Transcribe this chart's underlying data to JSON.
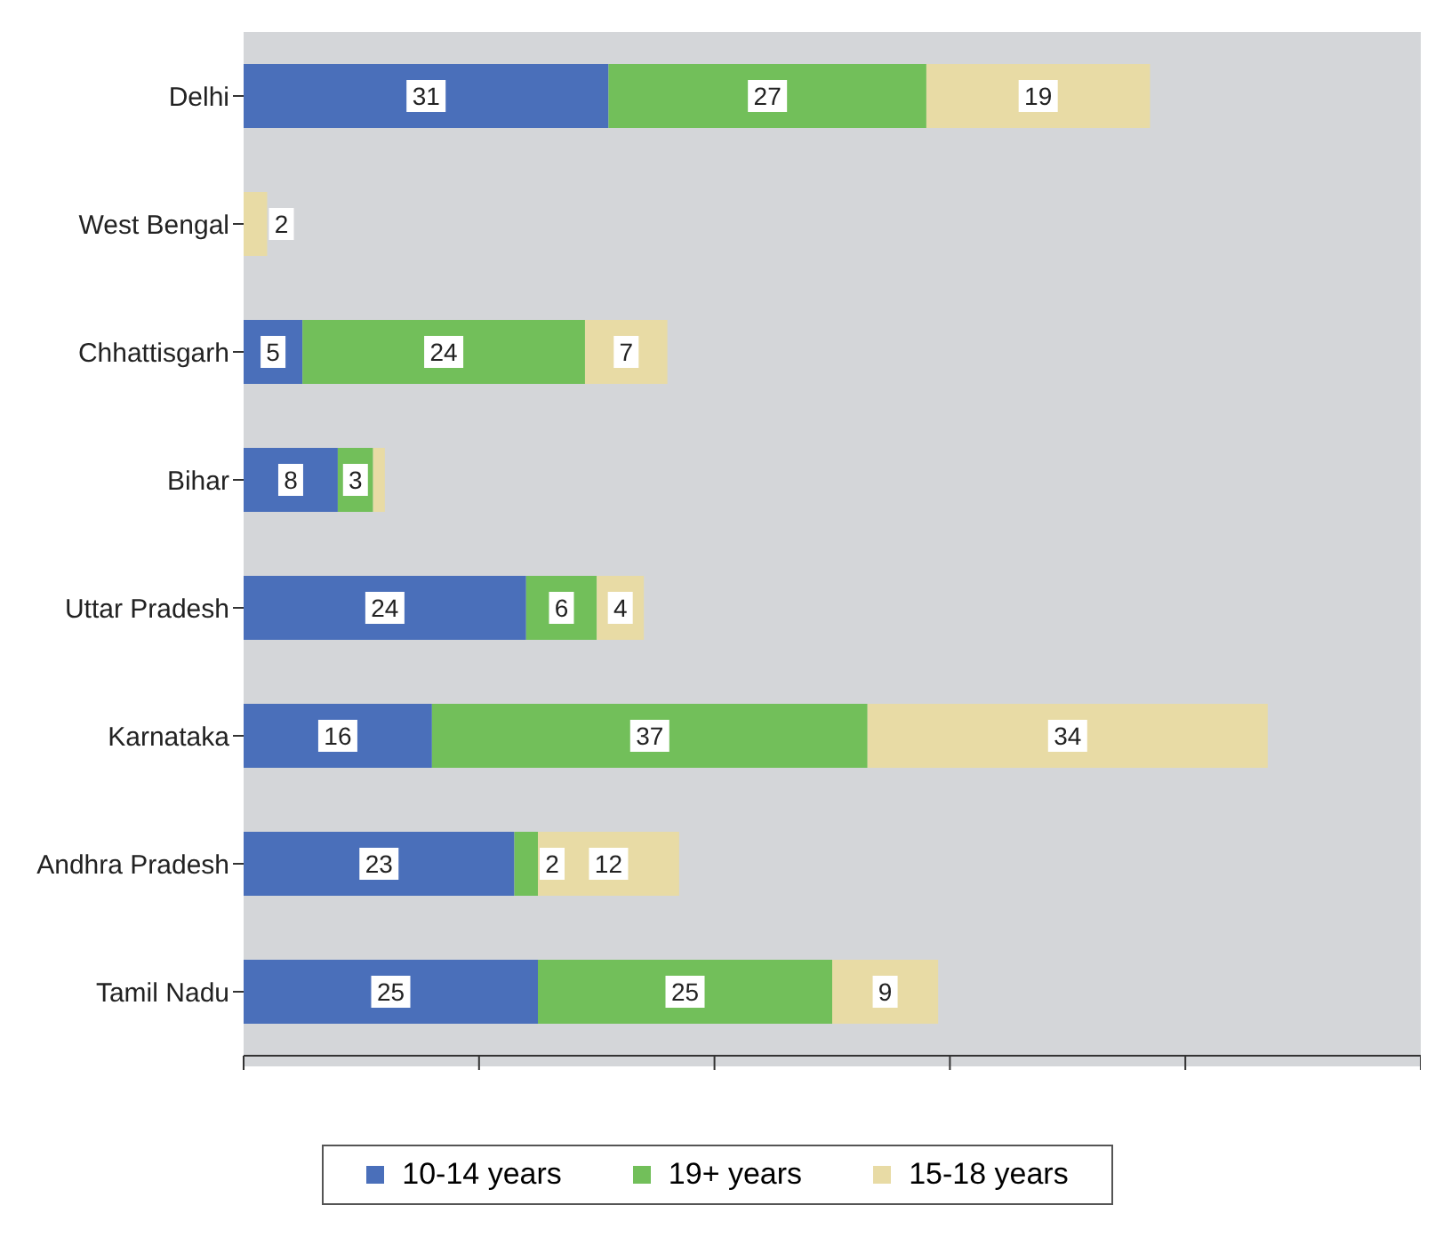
{
  "chart_data": {
    "type": "bar",
    "orientation": "horizontal",
    "stacked": true,
    "categories": [
      "Delhi",
      "West Bengal",
      "Chhattisgarh",
      "Bihar",
      "Uttar Pradesh",
      "Karnataka",
      "Andhra Pradesh",
      "Tamil Nadu"
    ],
    "series": [
      {
        "name": "10-14 years",
        "color": "#4a6fba",
        "values": [
          31,
          null,
          5,
          8,
          24,
          16,
          23,
          25
        ],
        "value_labels": [
          "31",
          null,
          "5",
          "8",
          "24",
          "16",
          "23",
          "25"
        ]
      },
      {
        "name": "19+ years",
        "color": "#72bf5a",
        "values": [
          27,
          null,
          24,
          3,
          6,
          37,
          2,
          25
        ],
        "value_labels": [
          "27",
          null,
          "24",
          "3",
          "6",
          "37",
          "2",
          "25"
        ]
      },
      {
        "name": "15-18 years",
        "color": "#e8dba5",
        "values": [
          19,
          2,
          7,
          1,
          4,
          34,
          12,
          9
        ],
        "value_labels": [
          "19",
          "2",
          "7",
          null,
          "4",
          "34",
          "12",
          "9"
        ]
      }
    ],
    "xlim": [
      0,
      100
    ],
    "xticks": [
      {
        "value": 0,
        "label": null
      },
      {
        "value": 20,
        "label": null
      },
      {
        "value": 40,
        "label": null
      },
      {
        "value": 60,
        "label": null
      },
      {
        "value": 80,
        "label": null
      },
      {
        "value": 100,
        "label": null
      }
    ],
    "tick_labels": "y",
    "legend": "bottom"
  }
}
